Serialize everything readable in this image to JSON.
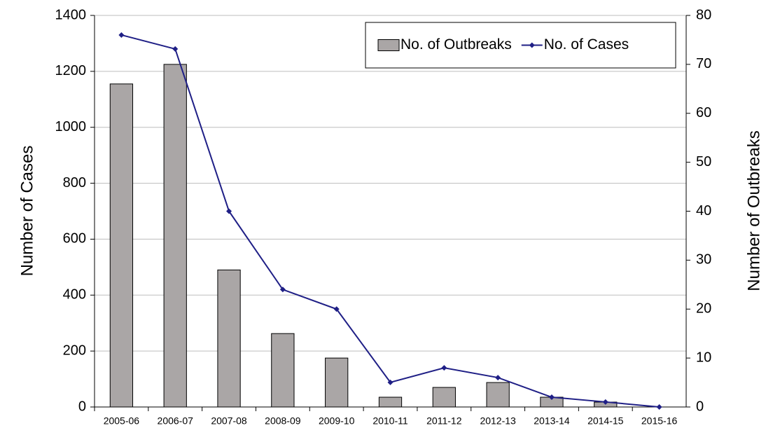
{
  "chart_data": {
    "type": "bar_line",
    "categories": [
      "2005-06",
      "2006-07",
      "2007-08",
      "2008-09",
      "2009-10",
      "2010-11",
      "2011-12",
      "2012-13",
      "2013-14",
      "2014-15",
      "2015-16"
    ],
    "series": [
      {
        "name": "No. of Outbreaks",
        "type": "bar",
        "axis": "y2",
        "color": "#aaa6a6",
        "values": [
          66,
          70,
          28,
          15,
          10,
          2,
          4,
          5,
          2,
          1,
          0
        ]
      },
      {
        "name": "No. of Cases",
        "type": "line",
        "axis": "y",
        "color": "#1f1f86",
        "values": [
          1330,
          1280,
          700,
          420,
          350,
          88,
          140,
          105,
          35,
          18,
          0
        ]
      }
    ],
    "y_label": "Number of Cases",
    "y2_label": "Number of Outbreaks",
    "ylim": [
      0,
      1400
    ],
    "yticks": [
      0,
      200,
      400,
      600,
      800,
      1000,
      1200,
      1400
    ],
    "y2lim": [
      0,
      80
    ],
    "y2ticks": [
      0,
      10,
      20,
      30,
      40,
      50,
      60,
      70,
      80
    ],
    "grid": true,
    "legend": "top-right"
  }
}
